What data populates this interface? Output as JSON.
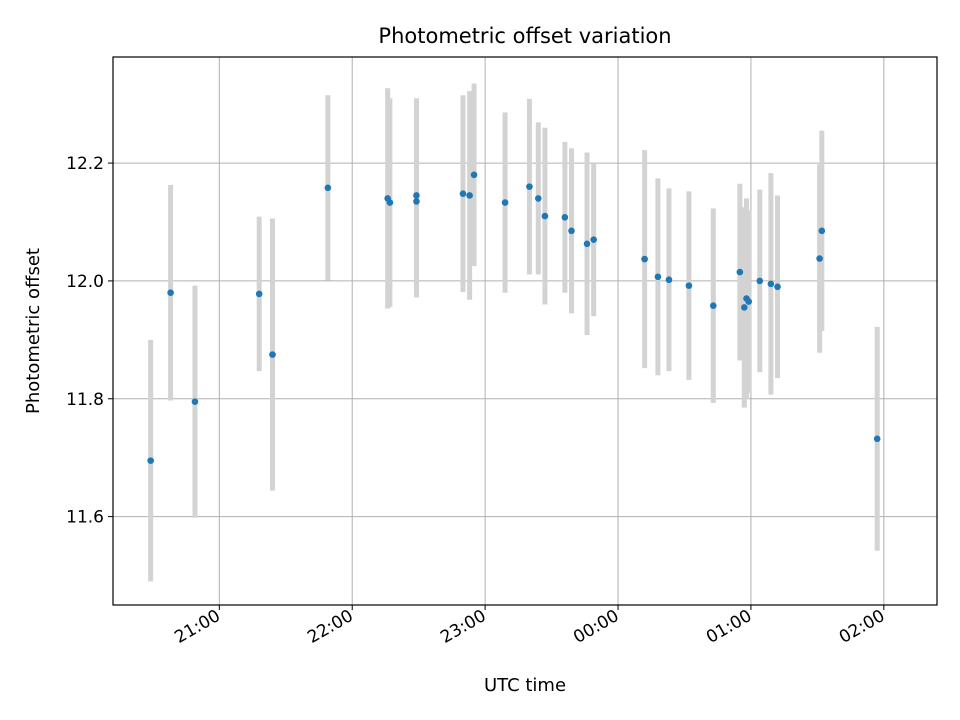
{
  "chart_data": {
    "type": "scatter",
    "title": "Photometric offset variation",
    "xlabel": "UTC time",
    "ylabel": "Photometric offset",
    "xlim": [
      "20:12",
      "02:24"
    ],
    "ylim": [
      11.45,
      12.38
    ],
    "x_ticks": [
      "21:00",
      "22:00",
      "23:00",
      "00:00",
      "01:00",
      "02:00"
    ],
    "y_ticks": [
      11.6,
      11.8,
      12.0,
      12.2
    ],
    "grid": true,
    "colors": {
      "point": "#1f77b4",
      "errorbar": "#d3d3d3",
      "grid": "#b0b0b0",
      "axes": "#000000"
    },
    "points": [
      {
        "time": "20:29",
        "y": 11.695,
        "err": 0.205
      },
      {
        "time": "20:38",
        "y": 11.98,
        "err": 0.183
      },
      {
        "time": "20:49",
        "y": 11.795,
        "err": 0.197
      },
      {
        "time": "21:18",
        "y": 11.978,
        "err": 0.131
      },
      {
        "time": "21:24",
        "y": 11.875,
        "err": 0.231
      },
      {
        "time": "21:49",
        "y": 12.158,
        "err": 0.157
      },
      {
        "time": "22:16",
        "y": 12.14,
        "err": 0.187
      },
      {
        "time": "22:17",
        "y": 12.133,
        "err": 0.177
      },
      {
        "time": "22:29",
        "y": 12.145,
        "err": 0.165
      },
      {
        "time": "22:29",
        "y": 12.135,
        "err": 0.163
      },
      {
        "time": "22:50",
        "y": 12.148,
        "err": 0.167
      },
      {
        "time": "22:53",
        "y": 12.145,
        "err": 0.177
      },
      {
        "time": "22:55",
        "y": 12.18,
        "err": 0.155
      },
      {
        "time": "23:09",
        "y": 12.133,
        "err": 0.153
      },
      {
        "time": "23:20",
        "y": 12.16,
        "err": 0.149
      },
      {
        "time": "23:24",
        "y": 12.14,
        "err": 0.129
      },
      {
        "time": "23:27",
        "y": 12.11,
        "err": 0.15
      },
      {
        "time": "23:36",
        "y": 12.108,
        "err": 0.128
      },
      {
        "time": "23:39",
        "y": 12.085,
        "err": 0.14
      },
      {
        "time": "23:46",
        "y": 12.063,
        "err": 0.155
      },
      {
        "time": "23:49",
        "y": 12.07,
        "err": 0.13
      },
      {
        "time": "00:12",
        "y": 12.037,
        "err": 0.185
      },
      {
        "time": "00:18",
        "y": 12.007,
        "err": 0.167
      },
      {
        "time": "00:23",
        "y": 12.002,
        "err": 0.155
      },
      {
        "time": "00:32",
        "y": 11.992,
        "err": 0.16
      },
      {
        "time": "00:43",
        "y": 11.958,
        "err": 0.165
      },
      {
        "time": "00:55",
        "y": 12.015,
        "err": 0.15
      },
      {
        "time": "00:57",
        "y": 11.955,
        "err": 0.17
      },
      {
        "time": "00:58",
        "y": 11.97,
        "err": 0.17
      },
      {
        "time": "00:59",
        "y": 11.965,
        "err": 0.155
      },
      {
        "time": "01:04",
        "y": 12.0,
        "err": 0.155
      },
      {
        "time": "01:09",
        "y": 11.995,
        "err": 0.188
      },
      {
        "time": "01:12",
        "y": 11.99,
        "err": 0.155
      },
      {
        "time": "01:31",
        "y": 12.038,
        "err": 0.16
      },
      {
        "time": "01:32",
        "y": 12.085,
        "err": 0.17
      },
      {
        "time": "01:57",
        "y": 11.732,
        "err": 0.19
      }
    ]
  }
}
